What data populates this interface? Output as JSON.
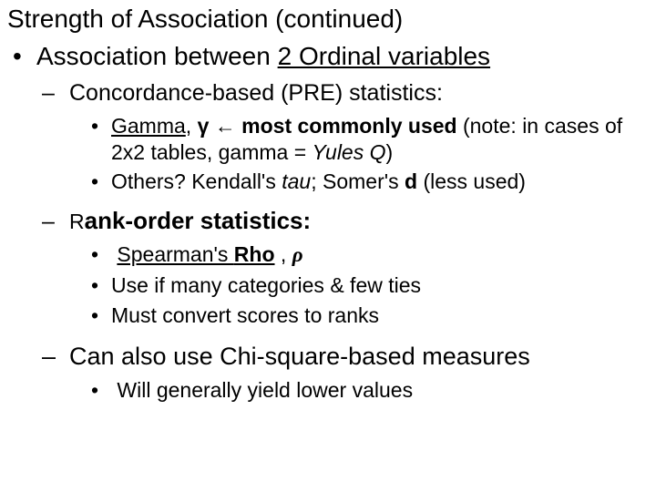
{
  "colors": {
    "text": "#000000",
    "background": "#ffffff"
  },
  "title": "Strength of Association (continued)",
  "lvl1_bullet": "•",
  "lvl1_text_prefix": "Association between ",
  "lvl1_text_underlined": "2 Ordinal variables",
  "concordance": {
    "dash": "–",
    "text": "Concordance-based (PRE) statistics:"
  },
  "gamma_line": {
    "dot": "•",
    "gamma_word": "Gamma",
    "comma_space": ", ",
    "gamma_sym": "γ",
    "arrow": " ← ",
    "most_used": "most commonly used",
    "note_open": " (note:  in cases of 2x2 tables, gamma = ",
    "yules": "Yules Q",
    "note_close": ")"
  },
  "others_line": {
    "dot": "•",
    "others_q": "Others?   Kendall's ",
    "tau": "tau",
    "somers_prefix": "; Somer's ",
    "d": "d",
    "tail": " (less used)"
  },
  "rank": {
    "dash": "–",
    "prefix_r": "R",
    "rest": "ank-order statistics:"
  },
  "rank_items": {
    "spearman_dot": "•",
    "spearman_pre": " ",
    "spearman_name": "Spearman's ",
    "rho": "Rho",
    "spearman_post": " , ",
    "rho_sym": "ρ",
    "use_dot": "•",
    "use_text": "Use if many categories & few ties",
    "convert_dot": "•",
    "convert_text": "Must convert scores to ranks"
  },
  "chi": {
    "dash": "–",
    "text": "Can also use Chi-square-based measures"
  },
  "chi_sub": {
    "dot": "•",
    "text": " Will generally yield lower values"
  }
}
